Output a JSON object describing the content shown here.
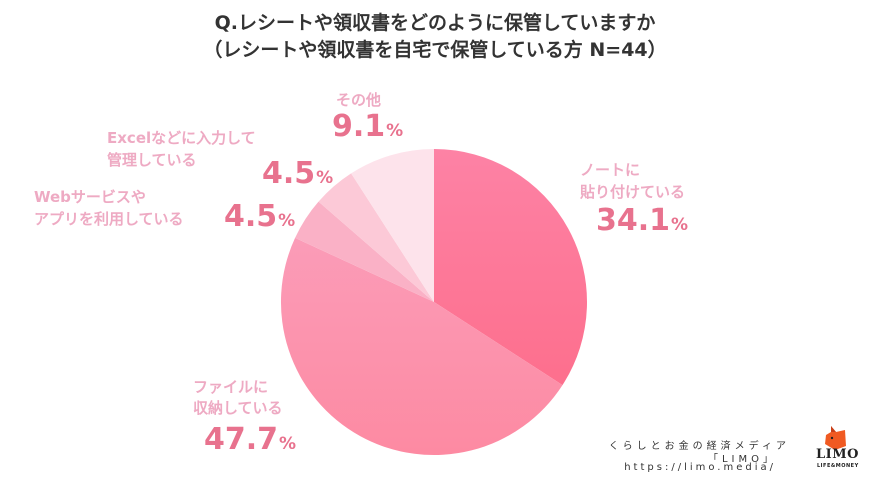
{
  "header": {
    "title_line1": "Q.レシートや領収書をどのように保管していますか",
    "title_line2": "（レシートや領収書を自宅で保管している方 N=44）"
  },
  "labels": {
    "note": {
      "line1": "ノートに",
      "line2": "貼り付けている",
      "value": "34.1",
      "unit": "%"
    },
    "file": {
      "line1": "ファイルに",
      "line2": "収納している",
      "value": "47.7",
      "unit": "%"
    },
    "web": {
      "line1": "Webサービスや",
      "line2": "アプリを利用している",
      "value": "4.5",
      "unit": "%"
    },
    "excel": {
      "line1": "Excelなどに入力して",
      "line2": "管理している",
      "value": "4.5",
      "unit": "%"
    },
    "other": {
      "line1": "その他",
      "value": "9.1",
      "unit": "%"
    }
  },
  "footer": {
    "tagline": "くらしとお金の経済メディア",
    "brand_bracket": "「LIMO」",
    "url": "https://limo.media/",
    "logo_text": "LIMO",
    "logo_sub": "LIFE&MONEY"
  },
  "colors": {
    "note": "#fd7b9c",
    "file": "#fb96b1",
    "web": "#fab1c6",
    "excel": "#fcc9d7",
    "other": "#fde3eb",
    "label_text": "#eeaac3",
    "value_text": "#e8728e",
    "logo_orange": "#f05a22"
  },
  "chart_data": {
    "type": "pie",
    "title": "Q.レシートや領収書をどのように保管していますか（レシートや領収書を自宅で保管している方 N=44）",
    "categories": [
      "ノートに貼り付けている",
      "ファイルに収納している",
      "Webサービスやアプリを利用している",
      "Excelなどに入力して管理している",
      "その他"
    ],
    "values": [
      34.1,
      47.7,
      4.5,
      4.5,
      9.1
    ],
    "unit": "%",
    "start_angle": "12 o'clock",
    "direction": "clockwise",
    "n": 44
  }
}
